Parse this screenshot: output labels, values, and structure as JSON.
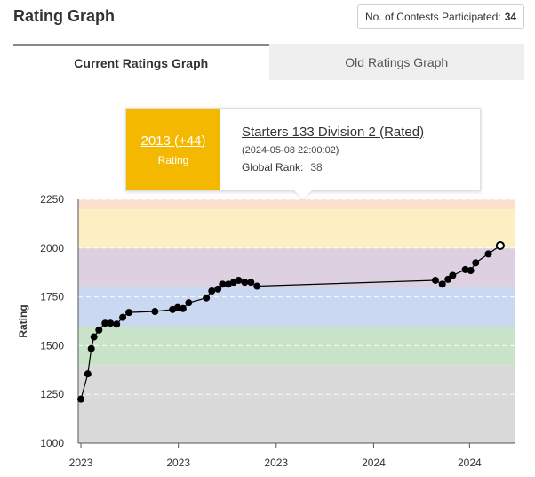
{
  "header": {
    "title": "Rating Graph",
    "contests_label": "No. of Contests Participated:",
    "contests_count": "34"
  },
  "tabs": [
    {
      "label": "Current Ratings Graph",
      "active": true
    },
    {
      "label": "Old Ratings Graph",
      "active": false
    }
  ],
  "tooltip": {
    "rating": "2013 (+44)",
    "rating_label": "Rating",
    "contest": "Starters 133 Division 2 (Rated)",
    "datetime": "(2024-05-08 22:00:02)",
    "rank_label": "Global Rank:",
    "rank_value": "38",
    "accent_color": "#f5b800"
  },
  "chart_data": {
    "type": "line",
    "ylabel": "Rating",
    "ylim": [
      1000,
      2250
    ],
    "yticks": [
      1000,
      1250,
      1500,
      1750,
      2000,
      2250
    ],
    "xlim": [
      0,
      100
    ],
    "xticks": [
      {
        "x": 0.7,
        "label": "2023"
      },
      {
        "x": 26.1,
        "label": "2023"
      },
      {
        "x": 51.6,
        "label": "2023"
      },
      {
        "x": 77,
        "label": "2024"
      },
      {
        "x": 102,
        "label": "2024"
      }
    ],
    "bands": [
      {
        "from": 1000,
        "to": 1400,
        "color": "#d9d9d9"
      },
      {
        "from": 1400,
        "to": 1600,
        "color": "#c9e3c9"
      },
      {
        "from": 1600,
        "to": 1800,
        "color": "#cad8f2"
      },
      {
        "from": 1800,
        "to": 2000,
        "color": "#ddd0e1"
      },
      {
        "from": 2000,
        "to": 2200,
        "color": "#fcefc4"
      },
      {
        "from": 2200,
        "to": 2250,
        "color": "#fce0cd"
      }
    ],
    "series": [
      {
        "points": [
          {
            "x": 0.7,
            "y": 1225
          },
          {
            "x": 2.5,
            "y": 1355
          },
          {
            "x": 3.4,
            "y": 1485
          },
          {
            "x": 4.1,
            "y": 1545
          },
          {
            "x": 5.4,
            "y": 1580
          },
          {
            "x": 7.0,
            "y": 1615
          },
          {
            "x": 8.4,
            "y": 1615
          },
          {
            "x": 10.0,
            "y": 1610
          },
          {
            "x": 11.6,
            "y": 1645
          },
          {
            "x": 13.2,
            "y": 1670
          },
          {
            "x": 20.0,
            "y": 1675
          },
          {
            "x": 24.6,
            "y": 1685
          },
          {
            "x": 25.9,
            "y": 1695
          },
          {
            "x": 27.3,
            "y": 1690
          },
          {
            "x": 28.8,
            "y": 1720
          },
          {
            "x": 33.4,
            "y": 1745
          },
          {
            "x": 34.8,
            "y": 1780
          },
          {
            "x": 36.4,
            "y": 1790
          },
          {
            "x": 37.6,
            "y": 1815
          },
          {
            "x": 39.1,
            "y": 1815
          },
          {
            "x": 40.5,
            "y": 1825
          },
          {
            "x": 41.8,
            "y": 1835
          },
          {
            "x": 43.4,
            "y": 1825
          },
          {
            "x": 45.0,
            "y": 1825
          },
          {
            "x": 46.6,
            "y": 1805
          },
          {
            "x": 93.1,
            "y": 1835
          },
          {
            "x": 94.9,
            "y": 1815
          },
          {
            "x": 96.4,
            "y": 1840
          },
          {
            "x": 97.6,
            "y": 1860
          },
          {
            "x": 100.9,
            "y": 1890
          },
          {
            "x": 102.3,
            "y": 1885
          },
          {
            "x": 103.6,
            "y": 1925
          },
          {
            "x": 106.9,
            "y": 1970
          },
          {
            "x": 110.0,
            "y": 2013
          }
        ]
      }
    ],
    "highlight_index": 33,
    "point_color": "#000000",
    "line_color": "#000000"
  }
}
